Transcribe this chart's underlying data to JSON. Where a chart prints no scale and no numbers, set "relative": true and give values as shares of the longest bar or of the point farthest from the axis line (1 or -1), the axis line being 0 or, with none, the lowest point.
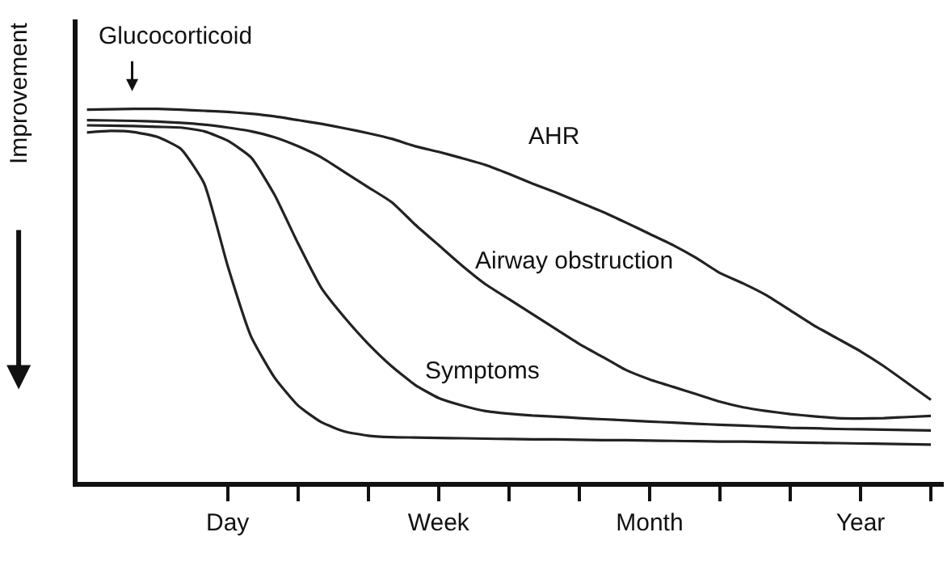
{
  "chart_data": {
    "type": "line",
    "relative": true,
    "ylabel": "Improvement",
    "legend": false,
    "grid": false,
    "marker": "none",
    "line_style": "solid",
    "tick_labels": "x",
    "categories": [
      null,
      null,
      null,
      null,
      null,
      null,
      "Day",
      null,
      null,
      null,
      null,
      null,
      null,
      null,
      null,
      "Week",
      null,
      null,
      null,
      null,
      null,
      null,
      null,
      null,
      "Month",
      null,
      null,
      null,
      null,
      null,
      null,
      null,
      null,
      "Year",
      null,
      null,
      null
    ],
    "annotations": [
      "Glucocorticoid"
    ],
    "series": [
      {
        "color": "#222222",
        "values": [
          0.937,
          0.941,
          0.938,
          0.925,
          0.893,
          0.8,
          0.58,
          0.39,
          0.28,
          0.205,
          0.16,
          0.135,
          0.124,
          0.12,
          0.119,
          0.118,
          0.117,
          0.116,
          0.115,
          0.114,
          0.114,
          0.113,
          0.112,
          0.112,
          0.111,
          0.11,
          0.109,
          0.108,
          0.108,
          0.107,
          0.106,
          0.105,
          0.104,
          0.103,
          0.102,
          0.101,
          0.1
        ]
      },
      {
        "name": "Symptoms",
        "color": "#222222",
        "values": [
          0.956,
          0.955,
          0.954,
          0.952,
          0.95,
          0.94,
          0.915,
          0.87,
          0.77,
          0.64,
          0.52,
          0.44,
          0.37,
          0.31,
          0.26,
          0.225,
          0.205,
          0.19,
          0.183,
          0.178,
          0.175,
          0.171,
          0.168,
          0.165,
          0.162,
          0.159,
          0.156,
          0.153,
          0.151,
          0.148,
          0.145,
          0.144,
          0.142,
          0.141,
          0.14,
          0.139,
          0.138
        ]
      },
      {
        "name": "Airway obstruction",
        "color": "#222222",
        "values": [
          0.97,
          0.969,
          0.968,
          0.966,
          0.963,
          0.958,
          0.95,
          0.94,
          0.924,
          0.9,
          0.87,
          0.83,
          0.79,
          0.75,
          0.69,
          0.635,
          0.58,
          0.53,
          0.49,
          0.45,
          0.41,
          0.37,
          0.335,
          0.3,
          0.275,
          0.255,
          0.235,
          0.215,
          0.2,
          0.19,
          0.182,
          0.176,
          0.171,
          0.17,
          0.171,
          0.174,
          0.177
        ]
      },
      {
        "name": "AHR",
        "color": "#222222",
        "values": [
          0.998,
          0.999,
          1.0,
          1.0,
          0.998,
          0.995,
          0.992,
          0.987,
          0.98,
          0.97,
          0.96,
          0.948,
          0.935,
          0.92,
          0.9,
          0.885,
          0.868,
          0.85,
          0.826,
          0.8,
          0.776,
          0.75,
          0.724,
          0.695,
          0.665,
          0.635,
          0.6,
          0.56,
          0.532,
          0.5,
          0.46,
          0.42,
          0.385,
          0.35,
          0.31,
          0.265,
          0.22
        ]
      }
    ]
  }
}
